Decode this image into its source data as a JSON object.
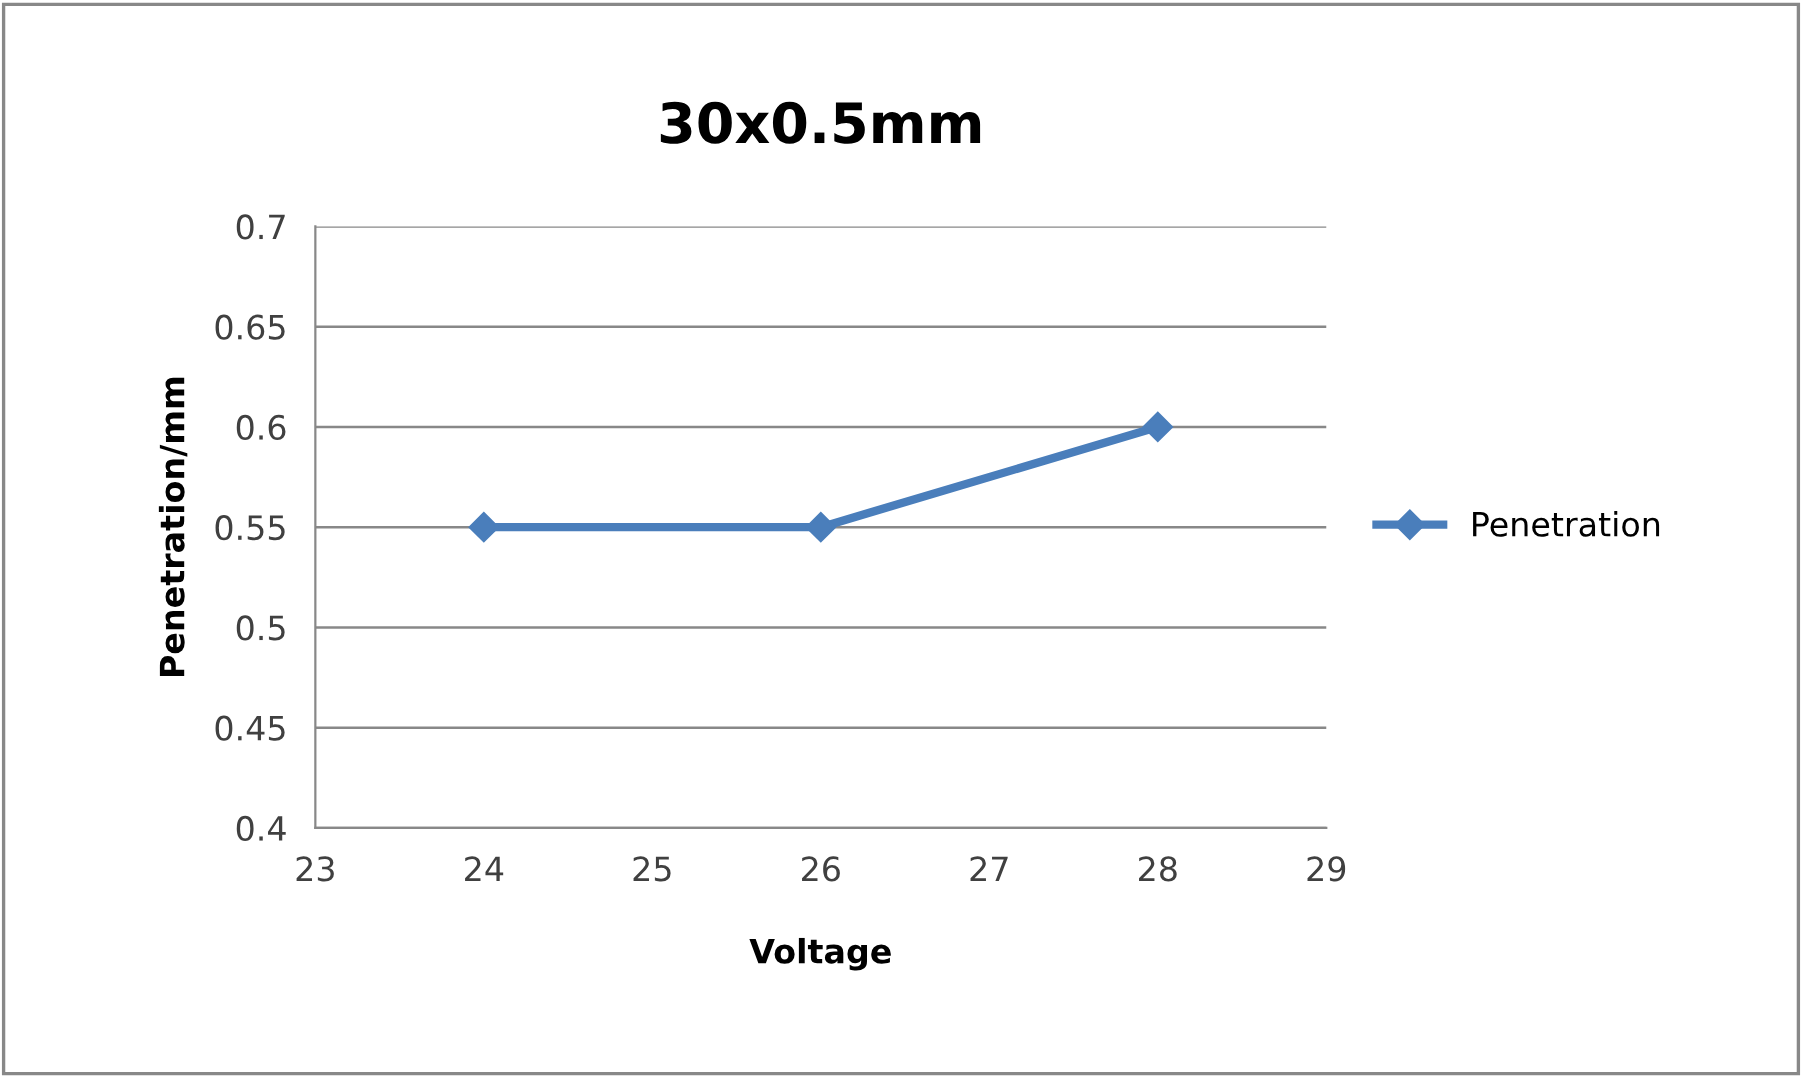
{
  "chart_data": {
    "type": "line",
    "title": "30x0.5mm",
    "xlabel": "Voltage",
    "ylabel": "Penetration/mm",
    "x": [
      24,
      26,
      28
    ],
    "series": [
      {
        "name": "Penetration",
        "color": "#4a7ebb",
        "values": [
          0.55,
          0.55,
          0.6
        ]
      }
    ],
    "xlim": [
      23,
      29
    ],
    "xticks": [
      23,
      24,
      25,
      26,
      27,
      28,
      29
    ],
    "ylim": [
      0.4,
      0.7
    ],
    "yticks": [
      0.4,
      0.45,
      0.5,
      0.55,
      0.6,
      0.65,
      0.7
    ],
    "grid": "y",
    "legend": "right",
    "marker": "diamond",
    "line_style": "solid"
  }
}
